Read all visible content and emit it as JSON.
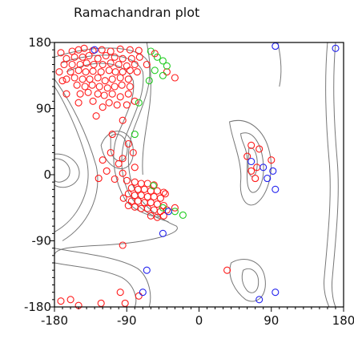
{
  "chart_data": {
    "type": "scatter",
    "title": "Ramachandran plot",
    "xlabel": "",
    "ylabel": "",
    "xlim": [
      -180,
      180
    ],
    "ylim": [
      -180,
      180
    ],
    "xticks": [
      -180,
      -90,
      0,
      90,
      180
    ],
    "yticks": [
      -180,
      -90,
      0,
      90,
      180
    ],
    "xtick_labels": [
      "-180",
      "-90",
      "0",
      "90",
      "180"
    ],
    "ytick_labels": [
      "-180",
      "-90",
      "0",
      "90",
      "180"
    ],
    "grid": false,
    "legend": "none",
    "colors": {
      "red": "#ff1a1a",
      "green": "#22cc22",
      "blue": "#2222ee",
      "contour": "#777777"
    },
    "series": [
      {
        "color": "red",
        "points": [
          [
            -172,
            166
          ],
          [
            -158,
            168
          ],
          [
            -150,
            170
          ],
          [
            -143,
            172
          ],
          [
            -132,
            169
          ],
          [
            -121,
            170
          ],
          [
            -110,
            168
          ],
          [
            -98,
            171
          ],
          [
            -86,
            170
          ],
          [
            -75,
            169
          ],
          [
            -165,
            158
          ],
          [
            -155,
            160
          ],
          [
            -145,
            160
          ],
          [
            -137,
            162
          ],
          [
            -126,
            158
          ],
          [
            -116,
            162
          ],
          [
            -105,
            160
          ],
          [
            -95,
            158
          ],
          [
            -84,
            158
          ],
          [
            -74,
            160
          ],
          [
            -168,
            150
          ],
          [
            -158,
            150
          ],
          [
            -148,
            150
          ],
          [
            -140,
            152
          ],
          [
            -131,
            150
          ],
          [
            -120,
            150
          ],
          [
            -110,
            152
          ],
          [
            -100,
            150
          ],
          [
            -90,
            148
          ],
          [
            -80,
            150
          ],
          [
            -160,
            140
          ],
          [
            -150,
            142
          ],
          [
            -141,
            140
          ],
          [
            -132,
            141
          ],
          [
            -122,
            140
          ],
          [
            -112,
            142
          ],
          [
            -104,
            140
          ],
          [
            -95,
            140
          ],
          [
            -86,
            142
          ],
          [
            -165,
            130
          ],
          [
            -155,
            132
          ],
          [
            -145,
            130
          ],
          [
            -136,
            130
          ],
          [
            -126,
            132
          ],
          [
            -117,
            128
          ],
          [
            -108,
            130
          ],
          [
            -98,
            132
          ],
          [
            -88,
            130
          ],
          [
            -152,
            122
          ],
          [
            -142,
            120
          ],
          [
            -133,
            122
          ],
          [
            -124,
            120
          ],
          [
            -114,
            118
          ],
          [
            -105,
            120
          ],
          [
            -96,
            122
          ],
          [
            -86,
            120
          ],
          [
            -77,
            140
          ],
          [
            -148,
            110
          ],
          [
            -138,
            112
          ],
          [
            -126,
            110
          ],
          [
            -118,
            108
          ],
          [
            -108,
            110
          ],
          [
            -98,
            106
          ],
          [
            -88,
            110
          ],
          [
            -132,
            100
          ],
          [
            -112,
            98
          ],
          [
            -165,
            110
          ],
          [
            -170,
            128
          ],
          [
            -174,
            140
          ],
          [
            -150,
            98
          ],
          [
            -120,
            92
          ],
          [
            -128,
            80
          ],
          [
            -102,
            95
          ],
          [
            -90,
            95
          ],
          [
            -95,
            74
          ],
          [
            -80,
            100
          ],
          [
            -40,
            140
          ],
          [
            -30,
            132
          ],
          [
            -55,
            165
          ],
          [
            -65,
            150
          ],
          [
            -108,
            55
          ],
          [
            -88,
            42
          ],
          [
            -110,
            30
          ],
          [
            -95,
            22
          ],
          [
            -120,
            20
          ],
          [
            -100,
            15
          ],
          [
            -115,
            5
          ],
          [
            -95,
            2
          ],
          [
            -82,
            30
          ],
          [
            -80,
            10
          ],
          [
            -125,
            -5
          ],
          [
            -105,
            -6
          ],
          [
            -90,
            -8
          ],
          [
            -80,
            -10
          ],
          [
            -72,
            -12
          ],
          [
            -64,
            -12
          ],
          [
            -56,
            -14
          ],
          [
            -84,
            -18
          ],
          [
            -76,
            -20
          ],
          [
            -68,
            -20
          ],
          [
            -60,
            -22
          ],
          [
            -52,
            -22
          ],
          [
            -44,
            -24
          ],
          [
            -88,
            -26
          ],
          [
            -80,
            -28
          ],
          [
            -72,
            -28
          ],
          [
            -64,
            -30
          ],
          [
            -56,
            -30
          ],
          [
            -48,
            -32
          ],
          [
            -42,
            -26
          ],
          [
            -84,
            -36
          ],
          [
            -76,
            -36
          ],
          [
            -68,
            -38
          ],
          [
            -60,
            -38
          ],
          [
            -52,
            -40
          ],
          [
            -44,
            -42
          ],
          [
            -80,
            -44
          ],
          [
            -72,
            -46
          ],
          [
            -64,
            -46
          ],
          [
            -56,
            -48
          ],
          [
            -48,
            -50
          ],
          [
            -40,
            -48
          ],
          [
            -88,
            -42
          ],
          [
            -94,
            -32
          ],
          [
            -60,
            -56
          ],
          [
            -52,
            -58
          ],
          [
            -44,
            -56
          ],
          [
            -95,
            -96
          ],
          [
            -30,
            -45
          ],
          [
            35,
            -130
          ],
          [
            65,
            40
          ],
          [
            75,
            35
          ],
          [
            60,
            25
          ],
          [
            72,
            10
          ],
          [
            65,
            5
          ],
          [
            90,
            20
          ],
          [
            70,
            -5
          ],
          [
            -172,
            -172
          ],
          [
            -150,
            -178
          ],
          [
            -122,
            -175
          ],
          [
            -92,
            -175
          ],
          [
            -75,
            -165
          ],
          [
            -98,
            -160
          ],
          [
            -160,
            -170
          ]
        ]
      },
      {
        "color": "green",
        "points": [
          [
            -60,
            168
          ],
          [
            -52,
            160
          ],
          [
            -45,
            155
          ],
          [
            -40,
            148
          ],
          [
            -45,
            135
          ],
          [
            -55,
            142
          ],
          [
            -62,
            128
          ],
          [
            -75,
            98
          ],
          [
            -80,
            55
          ],
          [
            -57,
            -15
          ],
          [
            -45,
            -45
          ],
          [
            -30,
            -50
          ],
          [
            -20,
            -55
          ]
        ]
      },
      {
        "color": "blue",
        "points": [
          [
            -130,
            170
          ],
          [
            95,
            175
          ],
          [
            170,
            172
          ],
          [
            65,
            18
          ],
          [
            80,
            10
          ],
          [
            85,
            -5
          ],
          [
            92,
            5
          ],
          [
            95,
            -20
          ],
          [
            -38,
            -50
          ],
          [
            -45,
            -80
          ],
          [
            -65,
            -130
          ],
          [
            -70,
            -160
          ],
          [
            95,
            -160
          ],
          [
            75,
            -170
          ]
        ]
      }
    ]
  }
}
